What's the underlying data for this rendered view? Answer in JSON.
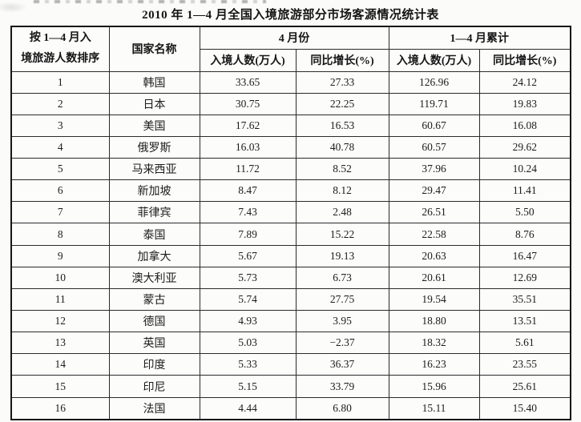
{
  "title": "2010 年 1—4 月全国入境旅游部分市场客源情况统计表",
  "table": {
    "headers": {
      "rank_line1": "按 1—4 月入",
      "rank_line2": "境旅游人数排序",
      "country": "国家名称",
      "april_group": "4 月份",
      "cumulative_group": "1—4 月累计",
      "inbound": "入境人数(万人)",
      "growth": "同比增长(%)"
    },
    "rows": [
      {
        "rank": "1",
        "country": "韩国",
        "apr_inbound": "33.65",
        "apr_growth": "27.33",
        "cum_inbound": "126.96",
        "cum_growth": "24.12"
      },
      {
        "rank": "2",
        "country": "日本",
        "apr_inbound": "30.75",
        "apr_growth": "22.25",
        "cum_inbound": "119.71",
        "cum_growth": "19.83"
      },
      {
        "rank": "3",
        "country": "美国",
        "apr_inbound": "17.62",
        "apr_growth": "16.53",
        "cum_inbound": "60.67",
        "cum_growth": "16.08"
      },
      {
        "rank": "4",
        "country": "俄罗斯",
        "apr_inbound": "16.03",
        "apr_growth": "40.78",
        "cum_inbound": "60.57",
        "cum_growth": "29.62"
      },
      {
        "rank": "5",
        "country": "马来西亚",
        "apr_inbound": "11.72",
        "apr_growth": "8.52",
        "cum_inbound": "37.96",
        "cum_growth": "10.24"
      },
      {
        "rank": "6",
        "country": "新加坡",
        "apr_inbound": "8.47",
        "apr_growth": "8.12",
        "cum_inbound": "29.47",
        "cum_growth": "11.41"
      },
      {
        "rank": "7",
        "country": "菲律宾",
        "apr_inbound": "7.43",
        "apr_growth": "2.48",
        "cum_inbound": "26.51",
        "cum_growth": "5.50"
      },
      {
        "rank": "8",
        "country": "泰国",
        "apr_inbound": "7.89",
        "apr_growth": "15.22",
        "cum_inbound": "22.58",
        "cum_growth": "8.76"
      },
      {
        "rank": "9",
        "country": "加拿大",
        "apr_inbound": "5.67",
        "apr_growth": "19.13",
        "cum_inbound": "20.63",
        "cum_growth": "16.47"
      },
      {
        "rank": "10",
        "country": "澳大利亚",
        "apr_inbound": "5.73",
        "apr_growth": "6.73",
        "cum_inbound": "20.61",
        "cum_growth": "12.69"
      },
      {
        "rank": "11",
        "country": "蒙古",
        "apr_inbound": "5.74",
        "apr_growth": "27.75",
        "cum_inbound": "19.54",
        "cum_growth": "35.51"
      },
      {
        "rank": "12",
        "country": "德国",
        "apr_inbound": "4.93",
        "apr_growth": "3.95",
        "cum_inbound": "18.80",
        "cum_growth": "13.51"
      },
      {
        "rank": "13",
        "country": "英国",
        "apr_inbound": "5.03",
        "apr_growth": "−2.37",
        "cum_inbound": "18.32",
        "cum_growth": "5.61"
      },
      {
        "rank": "14",
        "country": "印度",
        "apr_inbound": "5.33",
        "apr_growth": "36.37",
        "cum_inbound": "16.23",
        "cum_growth": "23.55"
      },
      {
        "rank": "15",
        "country": "印尼",
        "apr_inbound": "5.15",
        "apr_growth": "33.79",
        "cum_inbound": "15.96",
        "cum_growth": "25.61"
      },
      {
        "rank": "16",
        "country": "法国",
        "apr_inbound": "4.44",
        "apr_growth": "6.80",
        "cum_inbound": "15.11",
        "cum_growth": "15.40"
      }
    ]
  }
}
